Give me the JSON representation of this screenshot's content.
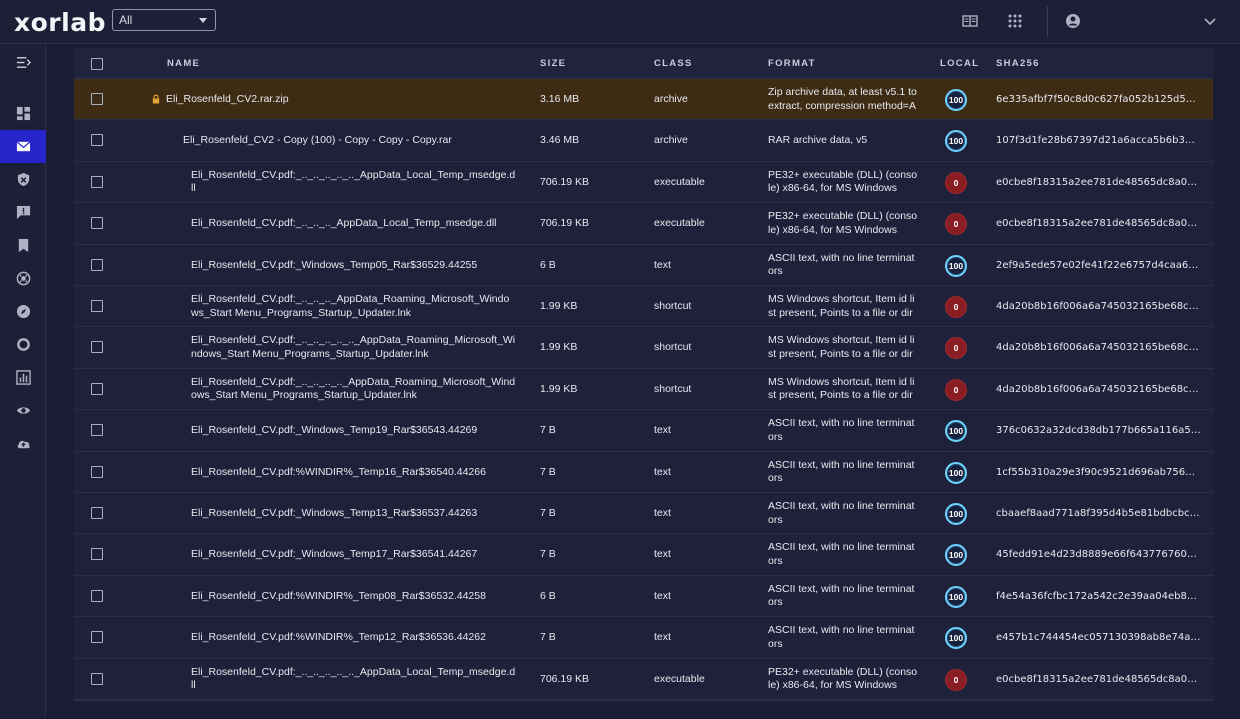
{
  "app": {
    "logo": "xorlab"
  },
  "filter": {
    "value": "All"
  },
  "colors": {
    "accent": "#2525c9",
    "selected_row": "#3d2c13",
    "good": "#6fd3ff",
    "bad": "#8a1d22"
  },
  "table": {
    "headers": {
      "name": "NAME",
      "size": "SIZE",
      "class": "CLASS",
      "format": "FORMAT",
      "local": "LOCAL",
      "sha256": "SHA256"
    },
    "rows": [
      {
        "name": "Eli_Rosenfeld_CV2.rar.zip",
        "size": "3.16 MB",
        "class": "archive",
        "format": "Zip archive data, at least v5.1 to extract, compression method=AE…",
        "local": "100",
        "sha": "6e335afbf7f50c8d0c627fa052b125d54…"
      },
      {
        "name": "Eli_Rosenfeld_CV2 - Copy (100) - Copy - Copy - Copy.rar",
        "size": "3.46 MB",
        "class": "archive",
        "format": "RAR archive data, v5",
        "local": "100",
        "sha": "107f3d1fe28b67397d21a6acca5b6b35d…"
      },
      {
        "name": "Eli_Rosenfeld_CV.pdf:_.._.._.._.._.._AppData_Local_Temp_msedge.dll",
        "size": "706.19 KB",
        "class": "executable",
        "format": "PE32+ executable (DLL) (console) x86-64, for MS Windows",
        "local": "0",
        "sha": "e0cbe8f18315a2ee781de48565dc8a087…"
      },
      {
        "name": "Eli_Rosenfeld_CV.pdf:_.._.._.._AppData_Local_Temp_msedge.dll",
        "size": "706.19 KB",
        "class": "executable",
        "format": "PE32+ executable (DLL) (console) x86-64, for MS Windows",
        "local": "0",
        "sha": "e0cbe8f18315a2ee781de48565dc8a087…"
      },
      {
        "name": "Eli_Rosenfeld_CV.pdf:_Windows_Temp05_Rar$36529.44255",
        "size": "6 B",
        "class": "text",
        "format": "ASCII text, with no line terminators",
        "local": "100",
        "sha": "2ef9a5ede57e02fe41f22e6757d4caa6b…"
      },
      {
        "name": "Eli_Rosenfeld_CV.pdf:_.._.._.._AppData_Roaming_Microsoft_Windows_Start Menu_Programs_Startup_Updater.lnk",
        "size": "1.99 KB",
        "class": "shortcut",
        "format": "MS Windows shortcut, Item id list present, Points to a file or direct…",
        "local": "0",
        "sha": "4da20b8b16f006a6a745032165be68c42…"
      },
      {
        "name": "Eli_Rosenfeld_CV.pdf:_.._.._.._.._.._AppData_Roaming_Microsoft_Windows_Start Menu_Programs_Startup_Updater.lnk",
        "size": "1.99 KB",
        "class": "shortcut",
        "format": "MS Windows shortcut, Item id list present, Points to a file or direct…",
        "local": "0",
        "sha": "4da20b8b16f006a6a745032165be68c42…"
      },
      {
        "name": "Eli_Rosenfeld_CV.pdf:_.._.._.._.._AppData_Roaming_Microsoft_Windows_Start Menu_Programs_Startup_Updater.lnk",
        "size": "1.99 KB",
        "class": "shortcut",
        "format": "MS Windows shortcut, Item id list present, Points to a file or direct…",
        "local": "0",
        "sha": "4da20b8b16f006a6a745032165be68c42…"
      },
      {
        "name": "Eli_Rosenfeld_CV.pdf:_Windows_Temp19_Rar$36543.44269",
        "size": "7 B",
        "class": "text",
        "format": "ASCII text, with no line terminators",
        "local": "100",
        "sha": "376c0632a32dcd38db177b665a116a513…"
      },
      {
        "name": "Eli_Rosenfeld_CV.pdf:%WINDIR%_Temp16_Rar$36540.44266",
        "size": "7 B",
        "class": "text",
        "format": "ASCII text, with no line terminators",
        "local": "100",
        "sha": "1cf55b310a29e3f90c9521d696ab7569b…"
      },
      {
        "name": "Eli_Rosenfeld_CV.pdf:_Windows_Temp13_Rar$36537.44263",
        "size": "7 B",
        "class": "text",
        "format": "ASCII text, with no line terminators",
        "local": "100",
        "sha": "cbaaef8aad771a8f395d4b5e81bdbcbc1…"
      },
      {
        "name": "Eli_Rosenfeld_CV.pdf:_Windows_Temp17_Rar$36541.44267",
        "size": "7 B",
        "class": "text",
        "format": "ASCII text, with no line terminators",
        "local": "100",
        "sha": "45fedd91e4d23d8889e66f6437767604d…"
      },
      {
        "name": "Eli_Rosenfeld_CV.pdf:%WINDIR%_Temp08_Rar$36532.44258",
        "size": "6 B",
        "class": "text",
        "format": "ASCII text, with no line terminators",
        "local": "100",
        "sha": "f4e54a36fcfbc172a542c2e39aa04eb80…"
      },
      {
        "name": "Eli_Rosenfeld_CV.pdf:%WINDIR%_Temp12_Rar$36536.44262",
        "size": "7 B",
        "class": "text",
        "format": "ASCII text, with no line terminators",
        "local": "100",
        "sha": "e457b1c744454ec057130398ab8e74a7c…"
      },
      {
        "name": "Eli_Rosenfeld_CV.pdf:_.._.._.._.._.._AppData_Local_Temp_msedge.dll",
        "size": "706.19 KB",
        "class": "executable",
        "format": "PE32+ executable (DLL) (console) x86-64, for MS Windows",
        "local": "0",
        "sha": "e0cbe8f18315a2ee781de48565dc8a087…"
      }
    ]
  }
}
